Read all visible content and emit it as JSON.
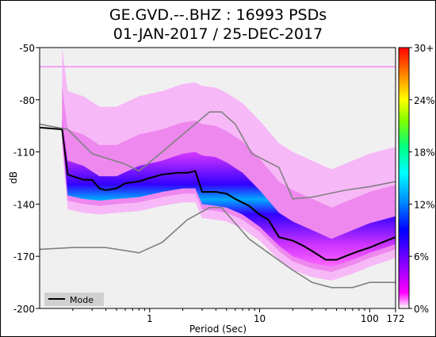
{
  "chart_data": {
    "type": "heatmap",
    "title_line1": "GE.GVD.--.BHZ : 16993 PSDs",
    "title_line2": "01-JAN-2017 / 25-DEC-2017",
    "xlabel": "Period (Sec)",
    "ylabel": "dB",
    "xscale": "log",
    "xlim": [
      0.1,
      172
    ],
    "ylim": [
      -200,
      -50
    ],
    "x_ticks": [
      {
        "value": 1,
        "label": "1"
      },
      {
        "value": 10,
        "label": "10"
      },
      {
        "value": 100,
        "label": "100"
      },
      {
        "value": 172,
        "label": "172"
      }
    ],
    "y_ticks": [
      {
        "value": -50,
        "label": "-50"
      },
      {
        "value": -80,
        "label": "-80"
      },
      {
        "value": -110,
        "label": "-110"
      },
      {
        "value": -140,
        "label": "-140"
      },
      {
        "value": -170,
        "label": "-170"
      },
      {
        "value": -200,
        "label": "-200"
      }
    ],
    "colorbar": {
      "ticks": [
        "30+",
        "24%",
        "18%",
        "12%",
        "6%",
        "0%"
      ],
      "values": [
        30,
        24,
        18,
        12,
        6,
        0
      ],
      "colors": [
        "#ff0000",
        "#ff8000",
        "#ffff00",
        "#80ff00",
        "#00ff80",
        "#00ffff",
        "#0080ff",
        "#0000ff",
        "#8000ff",
        "#ff00ff",
        "#ffffff"
      ]
    },
    "legend": {
      "label": "Mode",
      "placement": "bottom-left"
    },
    "series": [
      {
        "name": "Mode",
        "color": "#000000",
        "x": [
          0.1,
          0.16,
          0.18,
          0.2,
          0.25,
          0.3,
          0.35,
          0.4,
          0.5,
          0.6,
          0.8,
          1.0,
          1.3,
          1.8,
          2.2,
          2.6,
          3.0,
          3.5,
          4.0,
          5.0,
          6.0,
          8.0,
          10.0,
          12.0,
          15.0,
          20.0,
          25.0,
          30.0,
          40.0,
          50.0,
          60.0,
          80.0,
          100.0,
          130.0,
          172.0
        ],
        "y": [
          -96,
          -97,
          -123,
          -124,
          -126,
          -126,
          -131,
          -132,
          -131,
          -128,
          -127,
          -125,
          -123,
          -122,
          -122,
          -121,
          -133,
          -133,
          -133,
          -134,
          -137,
          -141,
          -146,
          -149,
          -159,
          -161,
          -164,
          -167,
          -172,
          -172,
          -170,
          -167,
          -165,
          -162,
          -159
        ]
      },
      {
        "name": "",
        "color": "#808080",
        "x": [
          0.1,
          0.18,
          0.3,
          0.6,
          0.8,
          1.3,
          2.0,
          3.5,
          4.5,
          6.0,
          8.5,
          15.0,
          20.0,
          30.0,
          60.0,
          100.0,
          172.0
        ],
        "y": [
          -94,
          -97,
          -111,
          -117,
          -121,
          -110,
          -100,
          -87,
          -87,
          -94,
          -111,
          -119,
          -137,
          -136,
          -132,
          -130,
          -127
        ]
      },
      {
        "name": "",
        "color": "#808080",
        "x": [
          0.1,
          0.2,
          0.4,
          0.8,
          1.3,
          2.2,
          3.5,
          4.5,
          6.0,
          8.0,
          12.0,
          20.0,
          30.0,
          45.0,
          70.0,
          100.0,
          172.0
        ],
        "y": [
          -166,
          -165,
          -165,
          -168,
          -162,
          -149,
          -142,
          -142,
          -151,
          -160,
          -168,
          -178,
          -185,
          -188,
          -188,
          -185,
          -185
        ]
      }
    ],
    "density_band": {
      "x": [
        0.16,
        0.18,
        0.25,
        0.35,
        0.5,
        0.8,
        1.3,
        2.0,
        2.6,
        3.0,
        4.0,
        5.0,
        7.0,
        10.0,
        15.0,
        20.0,
        30.0,
        45.0,
        70.0,
        100.0,
        172.0
      ],
      "upper": [
        -90,
        -115,
        -118,
        -124,
        -124,
        -118,
        -115,
        -111,
        -110,
        -112,
        -113,
        -116,
        -122,
        -132,
        -145,
        -150,
        -155,
        -160,
        -155,
        -151,
        -147
      ],
      "lower": [
        -100,
        -135,
        -137,
        -138,
        -137,
        -136,
        -133,
        -131,
        -131,
        -140,
        -141,
        -142,
        -146,
        -153,
        -164,
        -170,
        -174,
        -176,
        -172,
        -168,
        -163
      ]
    }
  }
}
